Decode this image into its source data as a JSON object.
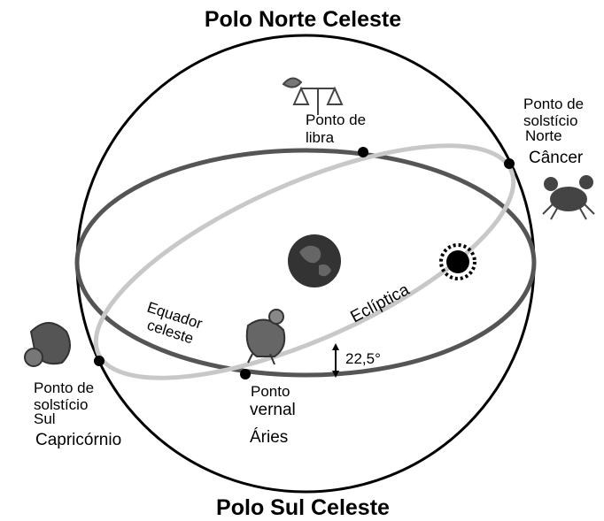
{
  "title_top": "Polo Norte Celeste",
  "title_bottom": "Polo Sul Celeste",
  "labels": {
    "libra": [
      "Ponto de",
      "libra"
    ],
    "cancer": [
      "Ponto de",
      "solstício",
      "Norte",
      "Câncer"
    ],
    "capricorn": [
      "Ponto de",
      "solstício",
      "Sul",
      "Capricórnio"
    ],
    "aries": [
      "Ponto",
      "vernal",
      "Áries"
    ],
    "equator": [
      "Equador",
      "celeste"
    ],
    "ecliptic": "Eclíptica",
    "angle": "22,5°"
  }
}
